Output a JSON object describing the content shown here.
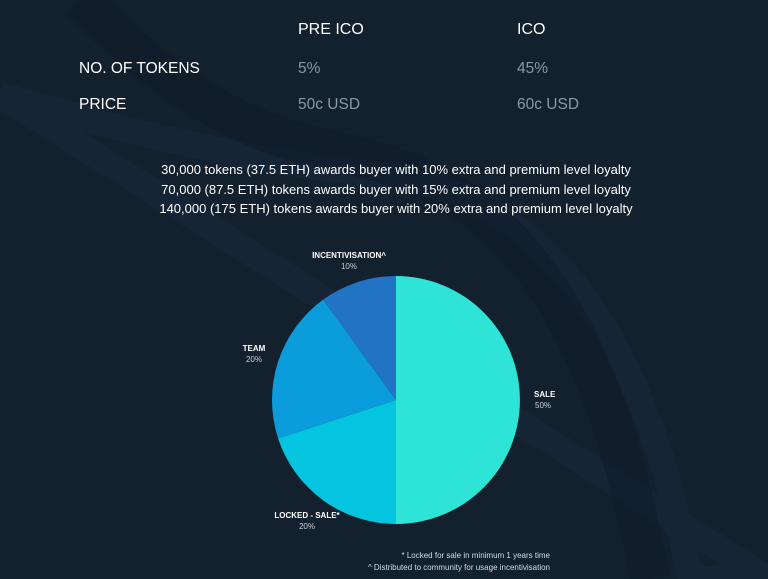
{
  "table": {
    "headers": [
      "PRE ICO",
      "ICO"
    ],
    "rows": [
      {
        "label": "NO. OF TOKENS",
        "pre_ico": "5%",
        "ico": "45%"
      },
      {
        "label": "PRICE",
        "pre_ico": "50c USD",
        "ico": "60c USD"
      }
    ]
  },
  "tiers": [
    "30,000 tokens (37.5 ETH) awards buyer with 10% extra and premium level loyalty",
    "70,000 (87.5 ETH) tokens awards buyer with 15% extra and premium level loyalty",
    "140,000 (175 ETH) tokens awards buyer with 20% extra and premium level loyalty"
  ],
  "chart_data": {
    "type": "pie",
    "title": "",
    "slices": [
      {
        "label": "SALE",
        "value": 50,
        "display": "50%",
        "color": "#2ee4d6"
      },
      {
        "label": "LOCKED - SALE*",
        "value": 20,
        "display": "20%",
        "color": "#04c4e0"
      },
      {
        "label": "TEAM",
        "value": 20,
        "display": "20%",
        "color": "#0b9cdc"
      },
      {
        "label": "INCENTIVISATION^",
        "value": 10,
        "display": "10%",
        "color": "#2174c4"
      }
    ]
  },
  "footnotes": [
    "* Locked for sale in minimum 1 years time",
    "^ Distributed to community for usage incentivisation"
  ],
  "colors": {
    "background": "#13202e",
    "muted_text": "#8c98a6"
  }
}
